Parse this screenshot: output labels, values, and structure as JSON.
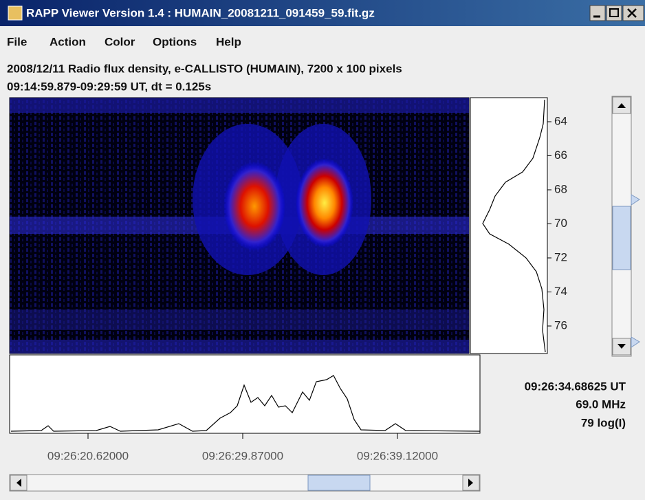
{
  "window": {
    "title": "RAPP Viewer Version 1.4 : HUMAIN_20081211_091459_59.fit.gz"
  },
  "menu": [
    "File",
    "Action",
    "Color",
    "Options",
    "Help"
  ],
  "info": {
    "line1": "2008/12/11  Radio flux density, e-CALLISTO (HUMAIN),  7200 x 100 pixels",
    "line2": "09:14:59.879-09:29:59 UT,  dt = 0.125s"
  },
  "frequency_ticks": [
    "64",
    "66",
    "68",
    "70",
    "72",
    "74",
    "76"
  ],
  "time_ticks": [
    "09:26:20.62000",
    "09:26:29.87000",
    "09:26:39.12000"
  ],
  "readout": {
    "time": "09:26:34.68625 UT",
    "frequency": "69.0 MHz",
    "intensity": "79 log(I)"
  }
}
